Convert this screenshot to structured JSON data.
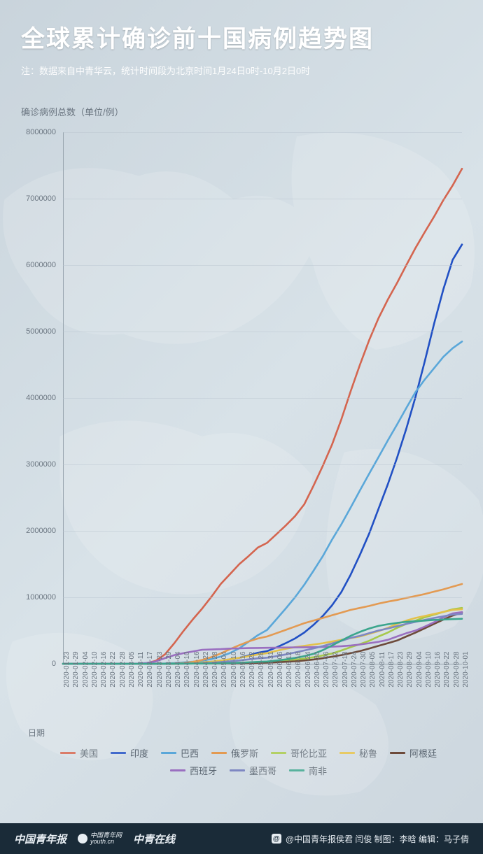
{
  "header": {
    "title": "全球累计确诊前十国病例趋势图",
    "subtitle": "注：数据来自中青华云，统计时间段为北京时间1月24日0时-10月2日0时"
  },
  "chart": {
    "type": "line",
    "ylabel": "确诊病例总数（单位/例）",
    "xlabel": "日期",
    "background_color": "#d2dce3",
    "grid_color": "#b8c4ce",
    "axis_color": "#9aa6b0",
    "label_color": "#6a7580",
    "label_fontsize": 12,
    "tick_fontsize": 11,
    "line_width": 2.6,
    "ylim": [
      0,
      8000000
    ],
    "yticks": [
      0,
      1000000,
      2000000,
      3000000,
      4000000,
      5000000,
      6000000,
      7000000,
      8000000
    ],
    "xticks": [
      "2020-01-23",
      "2020-01-29",
      "2020-02-04",
      "2020-02-10",
      "2020-02-16",
      "2020-02-22",
      "2020-02-28",
      "2020-03-05",
      "2020-03-11",
      "2020-03-17",
      "2020-03-23",
      "2020-03-29",
      "2020-04-04",
      "2020-04-10",
      "2020-04-16",
      "2020-04-22",
      "2020-04-28",
      "2020-05-04",
      "2020-05-10",
      "2020-05-16",
      "2020-05-22",
      "2020-05-28",
      "2020-05-31",
      "2020-06-06",
      "2020-06-12",
      "2020-06-18",
      "2020-06-24",
      "2020-06-30",
      "2020-07-06",
      "2020-07-12",
      "2020-07-18",
      "2020-07-24",
      "2020-07-30",
      "2020-08-05",
      "2020-08-11",
      "2020-08-17",
      "2020-08-23",
      "2020-08-29",
      "2020-09-04",
      "2020-09-10",
      "2020-09-16",
      "2020-09-22",
      "2020-09-28",
      "2020-10-01"
    ],
    "series": [
      {
        "name": "美国",
        "color": "#d4654f",
        "values": [
          0,
          0,
          0,
          0,
          0,
          0,
          0,
          160,
          1300,
          6500,
          44000,
          143000,
          311000,
          496000,
          670000,
          830000,
          1010000,
          1200000,
          1350000,
          1500000,
          1620000,
          1750000,
          1820000,
          1950000,
          2080000,
          2220000,
          2400000,
          2680000,
          2980000,
          3300000,
          3680000,
          4100000,
          4500000,
          4870000,
          5200000,
          5480000,
          5730000,
          6000000,
          6260000,
          6500000,
          6730000,
          6980000,
          7200000,
          7450000
        ]
      },
      {
        "name": "印度",
        "color": "#2150c4",
        "values": [
          0,
          0,
          0,
          0,
          0,
          0,
          0,
          0,
          60,
          140,
          500,
          1100,
          3500,
          7500,
          13500,
          21500,
          31500,
          46500,
          67000,
          90000,
          125000,
          165000,
          190000,
          245000,
          310000,
          380000,
          470000,
          585000,
          720000,
          880000,
          1080000,
          1340000,
          1640000,
          1960000,
          2330000,
          2700000,
          3100000,
          3540000,
          4020000,
          4560000,
          5120000,
          5640000,
          6080000,
          6310000
        ]
      },
      {
        "name": "巴西",
        "color": "#5aa7d9",
        "values": [
          0,
          0,
          0,
          0,
          0,
          0,
          0,
          0,
          0,
          300,
          1900,
          4600,
          10500,
          20000,
          32000,
          46500,
          72000,
          108000,
          162000,
          233000,
          330000,
          430000,
          510000,
          670000,
          830000,
          1000000,
          1190000,
          1400000,
          1620000,
          1870000,
          2100000,
          2350000,
          2610000,
          2860000,
          3110000,
          3360000,
          3600000,
          3850000,
          4090000,
          4280000,
          4450000,
          4620000,
          4750000,
          4850000
        ]
      },
      {
        "name": "俄罗斯",
        "color": "#e39a52",
        "values": [
          0,
          0,
          0,
          0,
          0,
          0,
          0,
          0,
          0,
          100,
          500,
          1800,
          4700,
          12000,
          28000,
          58000,
          100000,
          155000,
          220000,
          280000,
          335000,
          380000,
          410000,
          460000,
          510000,
          560000,
          610000,
          650000,
          690000,
          730000,
          770000,
          810000,
          840000,
          870000,
          905000,
          935000,
          960000,
          990000,
          1020000,
          1050000,
          1085000,
          1120000,
          1160000,
          1200000
        ]
      },
      {
        "name": "哥伦比亚",
        "color": "#a6c84a",
        "values": [
          0,
          0,
          0,
          0,
          0,
          0,
          0,
          0,
          0,
          0,
          300,
          800,
          1500,
          2700,
          3500,
          4500,
          6000,
          8000,
          11000,
          15000,
          20000,
          25000,
          29000,
          38000,
          48000,
          60000,
          77000,
          98000,
          125000,
          155000,
          200000,
          250000,
          295000,
          345000,
          410000,
          470000,
          540000,
          600000,
          650000,
          700000,
          740000,
          780000,
          820000,
          840000
        ]
      },
      {
        "name": "秘鲁",
        "color": "#e3c14a",
        "values": [
          0,
          0,
          0,
          0,
          0,
          0,
          0,
          0,
          0,
          100,
          400,
          1000,
          2500,
          6500,
          13000,
          20000,
          32000,
          48000,
          68000,
          90000,
          115000,
          140000,
          160000,
          195000,
          225000,
          250000,
          270000,
          290000,
          310000,
          335000,
          360000,
          385000,
          410000,
          450000,
          490000,
          540000,
          600000,
          650000,
          690000,
          720000,
          750000,
          780000,
          810000,
          820000
        ]
      },
      {
        "name": "阿根廷",
        "color": "#6d4a3a",
        "values": [
          0,
          0,
          0,
          0,
          0,
          0,
          0,
          0,
          0,
          0,
          300,
          900,
          1500,
          2100,
          2800,
          3400,
          4100,
          5000,
          6000,
          7800,
          10000,
          14000,
          17000,
          22000,
          29000,
          37000,
          49000,
          64000,
          83000,
          106000,
          130000,
          160000,
          190000,
          228000,
          270000,
          310000,
          350000,
          410000,
          470000,
          535000,
          600000,
          665000,
          725000,
          770000
        ]
      },
      {
        "name": "西班牙",
        "color": "#9a6fc0",
        "values": [
          0,
          0,
          0,
          0,
          0,
          0,
          0,
          200,
          2300,
          12000,
          35000,
          85000,
          130000,
          160000,
          185000,
          210000,
          215000,
          220000,
          228000,
          232000,
          236000,
          238000,
          240000,
          242000,
          244000,
          246000,
          248000,
          250000,
          253000,
          257000,
          264000,
          275000,
          290000,
          310000,
          330000,
          360000,
          410000,
          460000,
          500000,
          560000,
          625000,
          700000,
          758000,
          778000
        ]
      },
      {
        "name": "墨西哥",
        "color": "#7e87c2",
        "values": [
          0,
          0,
          0,
          0,
          0,
          0,
          0,
          0,
          0,
          100,
          400,
          1000,
          2000,
          3800,
          6500,
          10500,
          16000,
          25000,
          36000,
          49000,
          65000,
          82000,
          92000,
          115000,
          140000,
          170000,
          200000,
          230000,
          265000,
          305000,
          345000,
          390000,
          420000,
          460000,
          500000,
          530000,
          565000,
          600000,
          630000,
          660000,
          690000,
          715000,
          740000,
          750000
        ]
      },
      {
        "name": "南非",
        "color": "#3aa58c",
        "values": [
          0,
          0,
          0,
          0,
          0,
          0,
          0,
          0,
          0,
          100,
          400,
          1300,
          1700,
          2200,
          2800,
          3800,
          5000,
          7500,
          10500,
          15000,
          21000,
          28000,
          34000,
          48000,
          65000,
          87000,
          115000,
          150000,
          205000,
          275000,
          350000,
          420000,
          480000,
          530000,
          570000,
          595000,
          615000,
          630000,
          640000,
          650000,
          660000,
          665000,
          672000,
          677000
        ]
      }
    ]
  },
  "legend": {
    "items": [
      "美国",
      "印度",
      "巴西",
      "俄罗斯",
      "哥伦比亚",
      "秘鲁",
      "阿根廷",
      "西班牙",
      "墨西哥",
      "南非"
    ]
  },
  "footer": {
    "brand1": "中国青年报",
    "brand2": "youth.cn",
    "brand2_prefix": "中国青年网",
    "brand3": "中青在线",
    "credits": "@中国青年报侯君 闫俊 制图：李晗 编辑：马子倩"
  }
}
